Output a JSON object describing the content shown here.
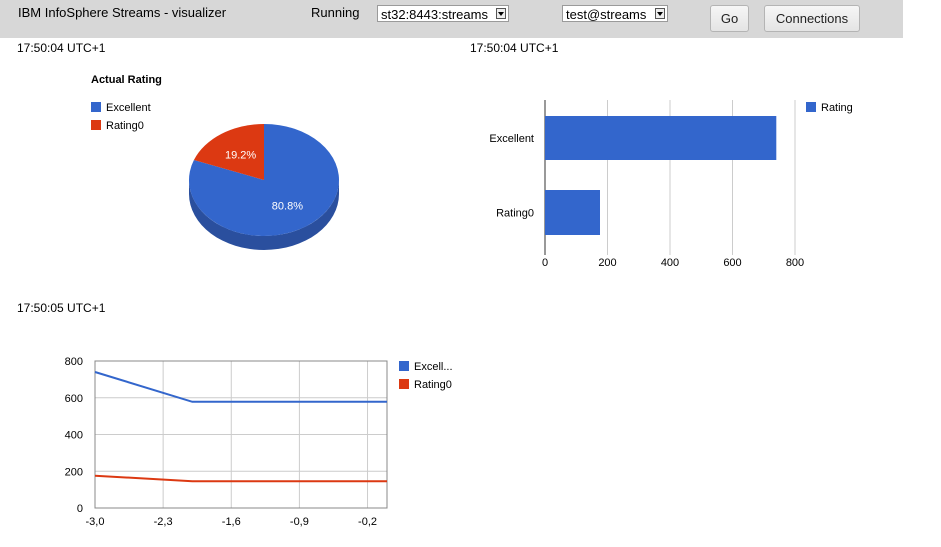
{
  "header": {
    "app_title": "IBM InfoSphere Streams - visualizer",
    "status": "Running",
    "server_select": "st32:8443:streams",
    "user_select": "test@streams",
    "go_label": "Go",
    "connections_label": "Connections"
  },
  "timestamps": {
    "pie": "17:50:04 UTC+1",
    "bar": "17:50:04 UTC+1",
    "line": "17:50:05 UTC+1"
  },
  "colors": {
    "blue": "#3366cc",
    "red": "#dc3912",
    "pie_side_blue": "#2a4f9e",
    "grid": "#cccccc"
  },
  "chart_data": [
    {
      "type": "pie",
      "title": "Actual Rating",
      "labels": [
        "Excellent",
        "Rating0"
      ],
      "values": [
        80.8,
        19.2
      ],
      "slice_labels": [
        "80.8%",
        "19.2%"
      ],
      "legend": "left"
    },
    {
      "type": "bar",
      "orientation": "horizontal",
      "categories": [
        "Excellent",
        "Rating0"
      ],
      "series": [
        {
          "name": "Rating",
          "values": [
            740,
            176
          ]
        }
      ],
      "xlim": [
        0,
        800
      ],
      "xticks": [
        "0",
        "200",
        "400",
        "600",
        "800"
      ],
      "grid": true,
      "legend": "right"
    },
    {
      "type": "line",
      "x": [
        -3.0,
        -2.0,
        0.0
      ],
      "series": [
        {
          "name": "Excell...",
          "values": [
            740,
            578,
            578
          ]
        },
        {
          "name": "Rating0",
          "values": [
            176,
            146,
            146
          ]
        }
      ],
      "ylim": [
        0,
        800
      ],
      "yticks": [
        "0",
        "200",
        "400",
        "600",
        "800"
      ],
      "xlim": [
        -3.0,
        0.0
      ],
      "xticks": [
        "-3,0",
        "-2,3",
        "-1,6",
        "-0,9",
        "-0,2"
      ],
      "grid": true,
      "legend": "right"
    }
  ]
}
